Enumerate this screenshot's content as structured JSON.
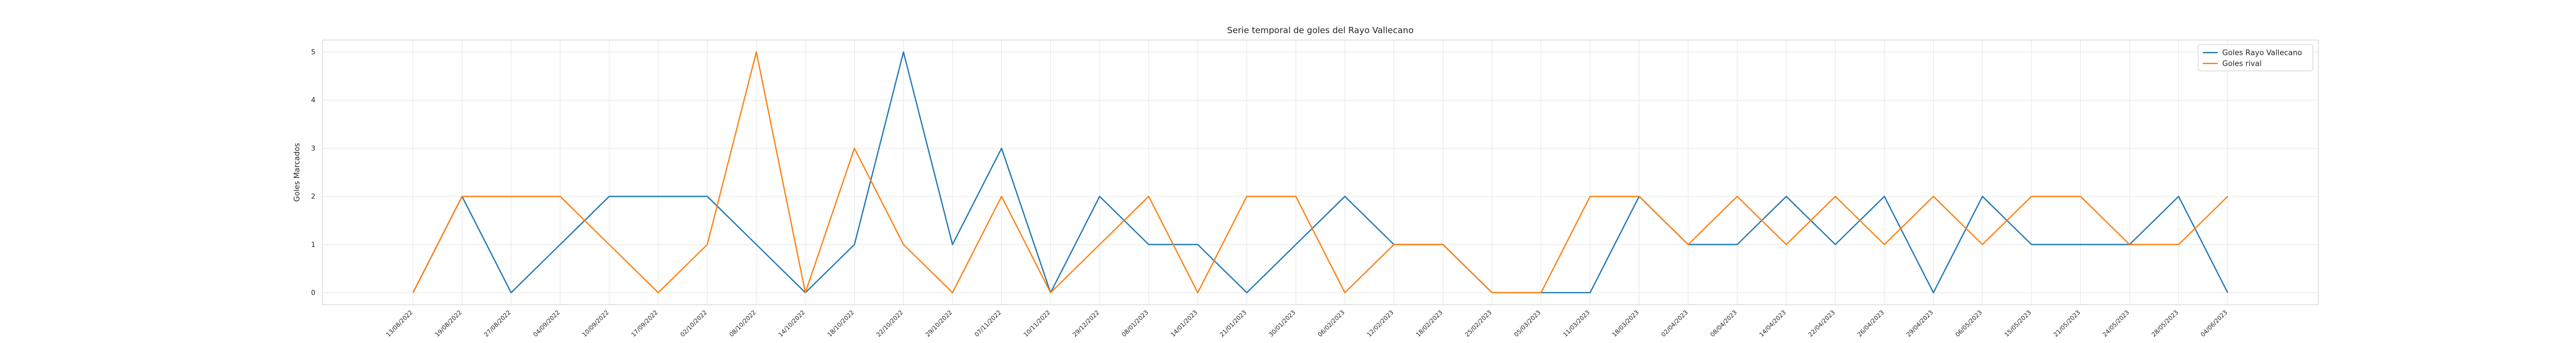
{
  "chart_data": {
    "type": "line",
    "title": "Serie temporal de goles del Rayo Vallecano",
    "xlabel": "",
    "ylabel": "Goles Marcados",
    "ylim": [
      -0.25,
      5.25
    ],
    "yticks": [
      0,
      1,
      2,
      3,
      4,
      5
    ],
    "grid": true,
    "legend_position": "top-right",
    "x": [
      "13/08/2022",
      "19/08/2022",
      "27/08/2022",
      "04/09/2022",
      "10/09/2022",
      "17/09/2022",
      "02/10/2022",
      "08/10/2022",
      "14/10/2022",
      "18/10/2022",
      "22/10/2022",
      "29/10/2022",
      "07/11/2022",
      "10/11/2022",
      "29/12/2022",
      "08/01/2023",
      "14/01/2023",
      "21/01/2023",
      "30/01/2023",
      "06/02/2023",
      "12/02/2023",
      "18/02/2023",
      "25/02/2023",
      "05/03/2023",
      "11/03/2023",
      "18/03/2023",
      "02/04/2023",
      "08/04/2023",
      "14/04/2023",
      "22/04/2023",
      "26/04/2023",
      "29/04/2023",
      "06/05/2023",
      "15/05/2023",
      "21/05/2023",
      "24/05/2023",
      "28/05/2023",
      "04/06/2023"
    ],
    "series": [
      {
        "name": "Goles Rayo Vallecano",
        "color": "#1f77b4",
        "values": [
          0,
          2,
          0,
          1,
          2,
          2,
          2,
          1,
          0,
          1,
          5,
          1,
          3,
          0,
          2,
          1,
          1,
          0,
          1,
          2,
          1,
          1,
          0,
          0,
          0,
          2,
          1,
          1,
          2,
          1,
          2,
          0,
          2,
          1,
          1,
          1,
          2,
          0
        ]
      },
      {
        "name": "Goles rival",
        "color": "#ff7f0e",
        "values": [
          0,
          2,
          2,
          2,
          1,
          0,
          1,
          5,
          0,
          3,
          1,
          0,
          2,
          0,
          1,
          2,
          0,
          2,
          2,
          0,
          1,
          1,
          0,
          0,
          2,
          2,
          1,
          2,
          1,
          2,
          1,
          2,
          1,
          2,
          2,
          1,
          1,
          2
        ]
      }
    ]
  }
}
